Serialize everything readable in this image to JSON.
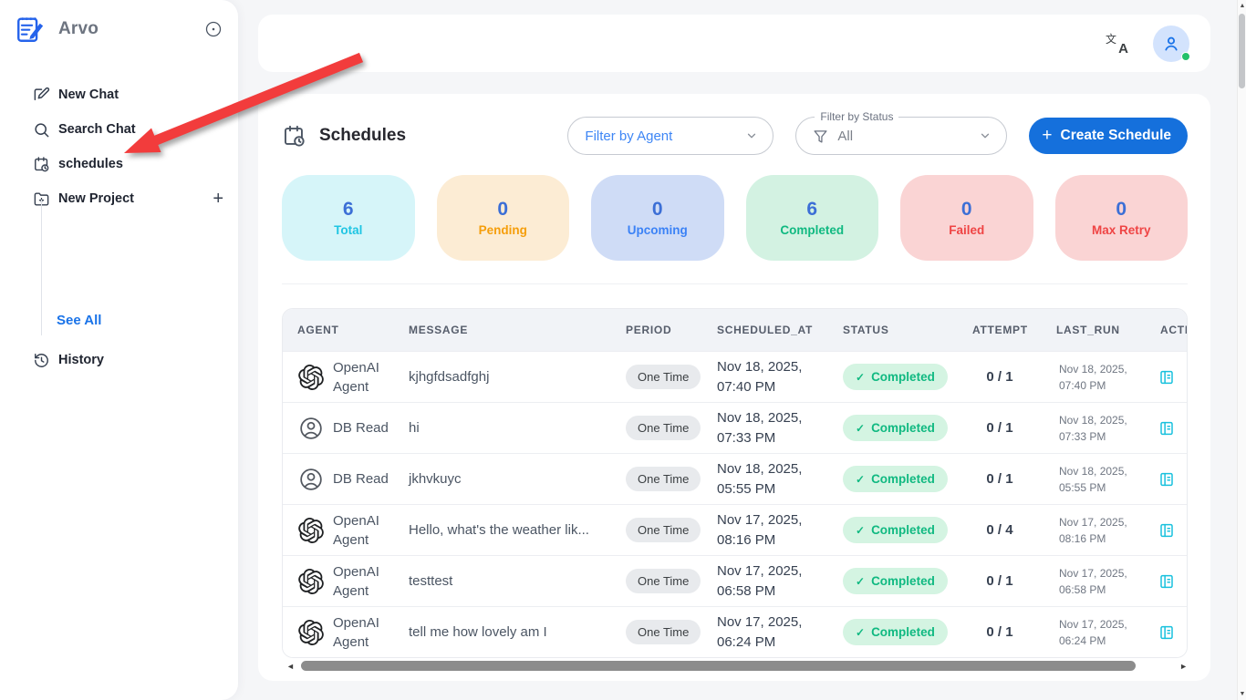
{
  "sidebar": {
    "app_name": "Arvo",
    "items": [
      {
        "label": "New Chat"
      },
      {
        "label": "Search Chat"
      },
      {
        "label": "schedules"
      },
      {
        "label": "New Project",
        "trailing": "+"
      }
    ],
    "see_all": "See All",
    "history": "History"
  },
  "header": {
    "title": "Schedules",
    "filter_agent_placeholder": "Filter by Agent",
    "filter_status_label": "Filter by Status",
    "filter_status_value": "All",
    "create_button": "Create Schedule",
    "create_plus": "+"
  },
  "stats": [
    {
      "value": "6",
      "label": "Total",
      "bg": "#d6f5f9",
      "label_color": "#1fc5e3"
    },
    {
      "value": "0",
      "label": "Pending",
      "bg": "#fcecd4",
      "label_color": "#f59e0b"
    },
    {
      "value": "0",
      "label": "Upcoming",
      "bg": "#cfdcf6",
      "label_color": "#3b82f6"
    },
    {
      "value": "6",
      "label": "Completed",
      "bg": "#d3f2e2",
      "label_color": "#10b981"
    },
    {
      "value": "0",
      "label": "Failed",
      "bg": "#fad4d4",
      "label_color": "#ef4444"
    },
    {
      "value": "0",
      "label": "Max Retry",
      "bg": "#fad4d4",
      "label_color": "#ef4444"
    }
  ],
  "table": {
    "columns": [
      "AGENT",
      "MESSAGE",
      "PERIOD",
      "SCHEDULED_AT",
      "STATUS",
      "ATTEMPT",
      "LAST_RUN",
      "ACTIONS"
    ],
    "rows": [
      {
        "agent": "OpenAI Agent",
        "agent_icon": "openai",
        "message": "kjhgfdsadfghj",
        "period": "One Time",
        "scheduled_at": "Nov 18, 2025, 07:40 PM",
        "status": "Completed",
        "attempt": "0 / 1",
        "last_run": "Nov 18, 2025, 07:40 PM"
      },
      {
        "agent": "DB Read",
        "agent_icon": "user",
        "message": "hi",
        "period": "One Time",
        "scheduled_at": "Nov 18, 2025, 07:33 PM",
        "status": "Completed",
        "attempt": "0 / 1",
        "last_run": "Nov 18, 2025, 07:33 PM"
      },
      {
        "agent": "DB Read",
        "agent_icon": "user",
        "message": "jkhvkuyc",
        "period": "One Time",
        "scheduled_at": "Nov 18, 2025, 05:55 PM",
        "status": "Completed",
        "attempt": "0 / 1",
        "last_run": "Nov 18, 2025, 05:55 PM"
      },
      {
        "agent": "OpenAI Agent",
        "agent_icon": "openai",
        "message": "Hello, what's the weather lik...",
        "period": "One Time",
        "scheduled_at": "Nov 17, 2025, 08:16 PM",
        "status": "Completed",
        "attempt": "0 / 4",
        "last_run": "Nov 17, 2025, 08:16 PM"
      },
      {
        "agent": "OpenAI Agent",
        "agent_icon": "openai",
        "message": "testtest",
        "period": "One Time",
        "scheduled_at": "Nov 17, 2025, 06:58 PM",
        "status": "Completed",
        "attempt": "0 / 1",
        "last_run": "Nov 17, 2025, 06:58 PM"
      },
      {
        "agent": "OpenAI Agent",
        "agent_icon": "openai",
        "message": "tell me how lovely am I",
        "period": "One Time",
        "scheduled_at": "Nov 17, 2025, 06:24 PM",
        "status": "Completed",
        "attempt": "0 / 1",
        "last_run": "Nov 17, 2025, 06:24 PM"
      }
    ],
    "status_check": "✓"
  },
  "colors": {
    "accent_blue": "#1570dc",
    "link_blue": "#1a73e8",
    "status_green": "#10b981",
    "annotation_arrow_red": "#f23c3c",
    "stat_number_blue": "#3c6fd6"
  }
}
